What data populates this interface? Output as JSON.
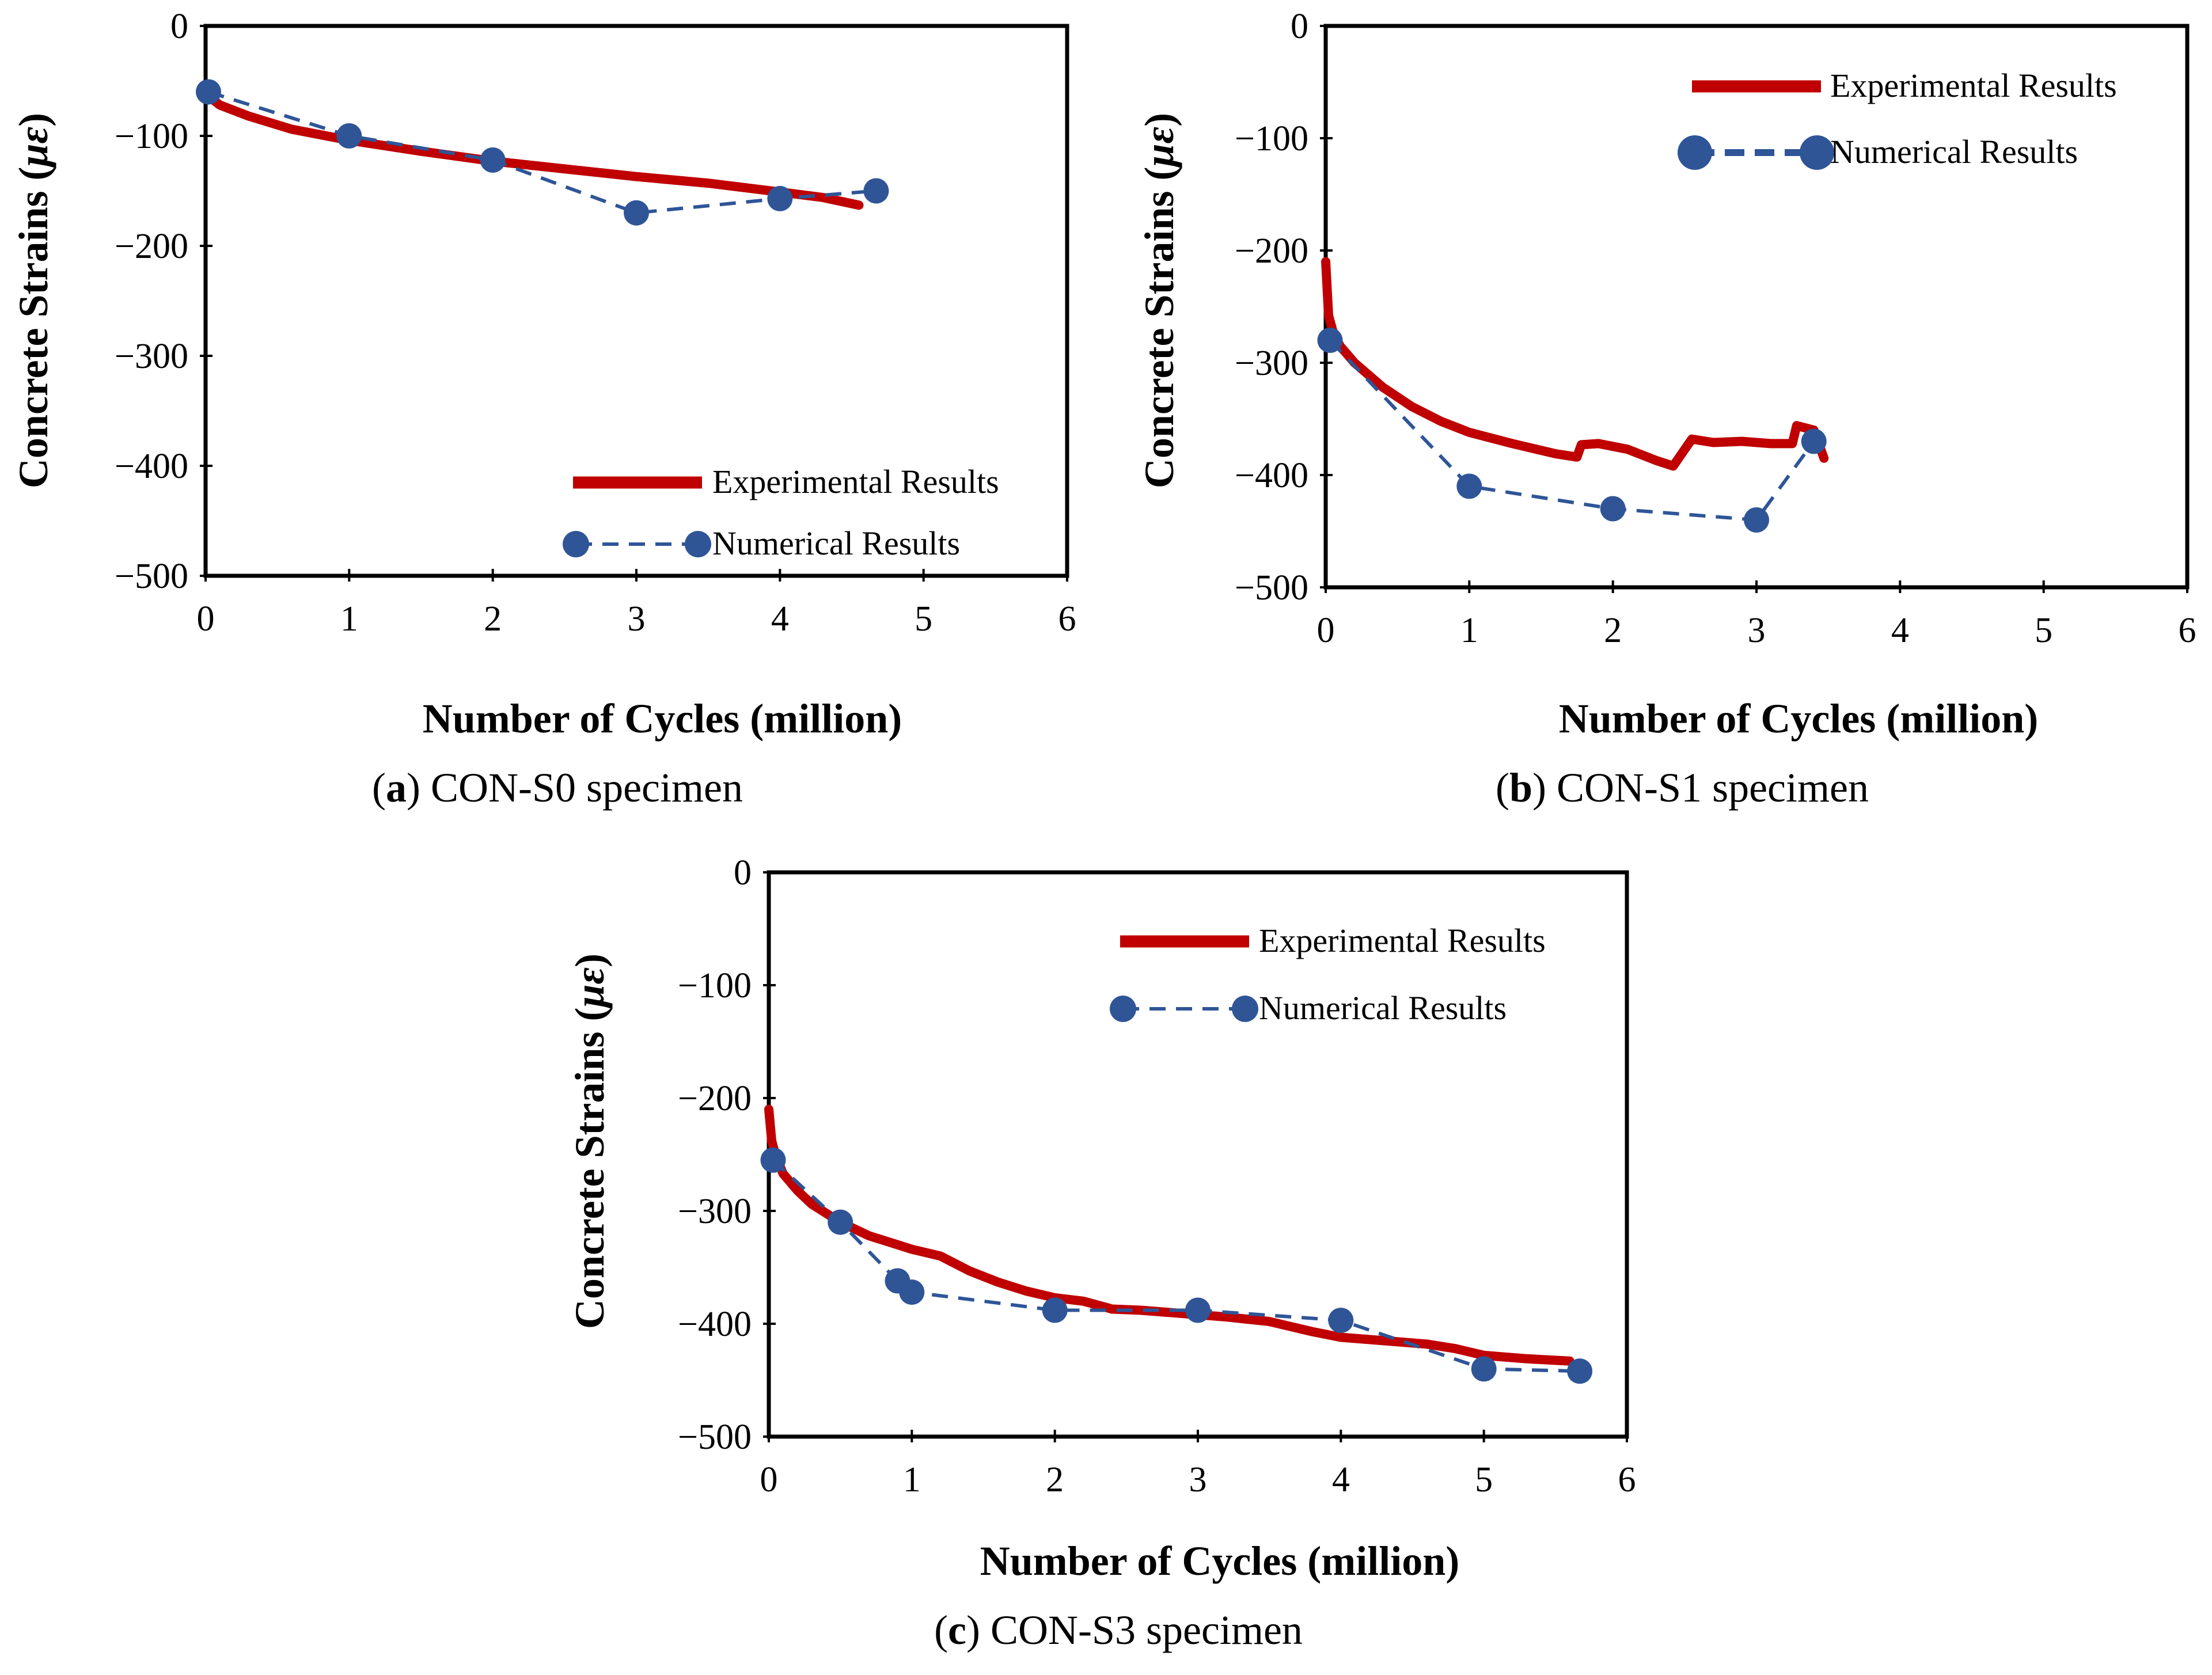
{
  "chart_data": [
    {
      "type": "line",
      "id": "a",
      "caption_letter": "a",
      "caption_text": "CON-S0 specimen",
      "xlabel": "Number of Cycles (million)",
      "ylabel": "Concrete Strains (",
      "ylabel_unit": "με",
      "xlim": [
        0,
        6
      ],
      "ylim": [
        -500,
        0
      ],
      "xticks": [
        0,
        1,
        2,
        3,
        4,
        5,
        6
      ],
      "yticks": [
        0,
        -100,
        -200,
        -300,
        -400,
        -500
      ],
      "xtick_labels": [
        "0",
        "1",
        "2",
        "3",
        "4",
        "5",
        "6"
      ],
      "ytick_labels": [
        "0",
        "−100",
        "−200",
        "−300",
        "−400",
        "−500"
      ],
      "legend_position": "bottom-right",
      "series": [
        {
          "name": "Experimental Results",
          "color": "#C00000",
          "style": "solid",
          "x": [
            0,
            0.1,
            0.3,
            0.6,
            1.0,
            1.5,
            2.0,
            2.5,
            3.0,
            3.5,
            4.0,
            4.3,
            4.55
          ],
          "y": [
            -62,
            -72,
            -82,
            -94,
            -104,
            -114,
            -123,
            -130,
            -137,
            -143,
            -151,
            -156,
            -163
          ]
        },
        {
          "name": "Numerical Results",
          "color": "#2F5597",
          "style": "dashed",
          "markers": true,
          "x": [
            0.02,
            1.0,
            2.0,
            3.0,
            4.0,
            4.67
          ],
          "y": [
            -60,
            -100,
            -122,
            -170,
            -157,
            -150
          ]
        }
      ]
    },
    {
      "type": "line",
      "id": "b",
      "caption_letter": "b",
      "caption_text": "CON-S1 specimen",
      "xlabel": "Number of Cycles (million)",
      "ylabel": "Concrete Strains (",
      "ylabel_unit": "με",
      "xlim": [
        0,
        6
      ],
      "ylim": [
        -500,
        0
      ],
      "xticks": [
        0,
        1,
        2,
        3,
        4,
        5,
        6
      ],
      "yticks": [
        0,
        -100,
        -200,
        -300,
        -400,
        -500
      ],
      "xtick_labels": [
        "0",
        "1",
        "2",
        "3",
        "4",
        "5",
        "6"
      ],
      "ytick_labels": [
        "0",
        "−100",
        "−200",
        "−300",
        "−400",
        "−500"
      ],
      "legend_position": "top-right",
      "series": [
        {
          "name": "Experimental Results",
          "color": "#C00000",
          "style": "solid",
          "x": [
            0,
            0.02,
            0.05,
            0.1,
            0.2,
            0.4,
            0.6,
            0.8,
            1.0,
            1.3,
            1.6,
            1.75,
            1.78,
            1.9,
            2.1,
            2.3,
            2.42,
            2.55,
            2.7,
            2.9,
            3.1,
            3.25,
            3.28,
            3.4,
            3.47
          ],
          "y": [
            -210,
            -258,
            -272,
            -285,
            -300,
            -322,
            -339,
            -352,
            -362,
            -372,
            -381,
            -384,
            -373,
            -372,
            -377,
            -387,
            -392,
            -368,
            -371,
            -370,
            -372,
            -372,
            -356,
            -360,
            -385
          ]
        },
        {
          "name": "Numerical Results",
          "color": "#2F5597",
          "style": "dashed",
          "markers": true,
          "x": [
            0.03,
            1.0,
            2.0,
            3.0,
            3.4
          ],
          "y": [
            -280,
            -410,
            -430,
            -440,
            -370
          ]
        }
      ]
    },
    {
      "type": "line",
      "id": "c",
      "caption_letter": "c",
      "caption_text": "CON-S3 specimen",
      "xlabel": "Number of Cycles (million)",
      "ylabel": "Concrete Strains (",
      "ylabel_unit": "με",
      "xlim": [
        0,
        6
      ],
      "ylim": [
        -500,
        0
      ],
      "xticks": [
        0,
        1,
        2,
        3,
        4,
        5,
        6
      ],
      "yticks": [
        0,
        -100,
        -200,
        -300,
        -400,
        -500
      ],
      "xtick_labels": [
        "0",
        "1",
        "2",
        "3",
        "4",
        "5",
        "6"
      ],
      "ytick_labels": [
        "0",
        "−100",
        "−200",
        "−300",
        "−400",
        "−500"
      ],
      "legend_position": "top-right",
      "series": [
        {
          "name": "Experimental Results",
          "color": "#C00000",
          "style": "solid",
          "x": [
            0,
            0.02,
            0.05,
            0.1,
            0.2,
            0.3,
            0.5,
            0.7,
            0.9,
            1.0,
            1.2,
            1.4,
            1.6,
            1.8,
            2.0,
            2.2,
            2.4,
            2.6,
            2.8,
            3.0,
            3.2,
            3.5,
            3.8,
            4.0,
            4.3,
            4.6,
            4.8,
            5.0,
            5.3,
            5.6
          ],
          "y": [
            -210,
            -238,
            -252,
            -267,
            -282,
            -294,
            -310,
            -322,
            -330,
            -334,
            -340,
            -353,
            -363,
            -371,
            -377,
            -380,
            -387,
            -388,
            -390,
            -392,
            -394,
            -398,
            -407,
            -412,
            -415,
            -418,
            -422,
            -428,
            -431,
            -433
          ]
        },
        {
          "name": "Numerical Results",
          "color": "#2F5597",
          "style": "dashed",
          "markers": true,
          "x": [
            0.03,
            0.5,
            0.9,
            1.0,
            2.0,
            3.0,
            4.0,
            5.0,
            5.67
          ],
          "y": [
            -255,
            -310,
            -362,
            -372,
            -388,
            -388,
            -397,
            -440,
            -442
          ]
        }
      ]
    }
  ]
}
